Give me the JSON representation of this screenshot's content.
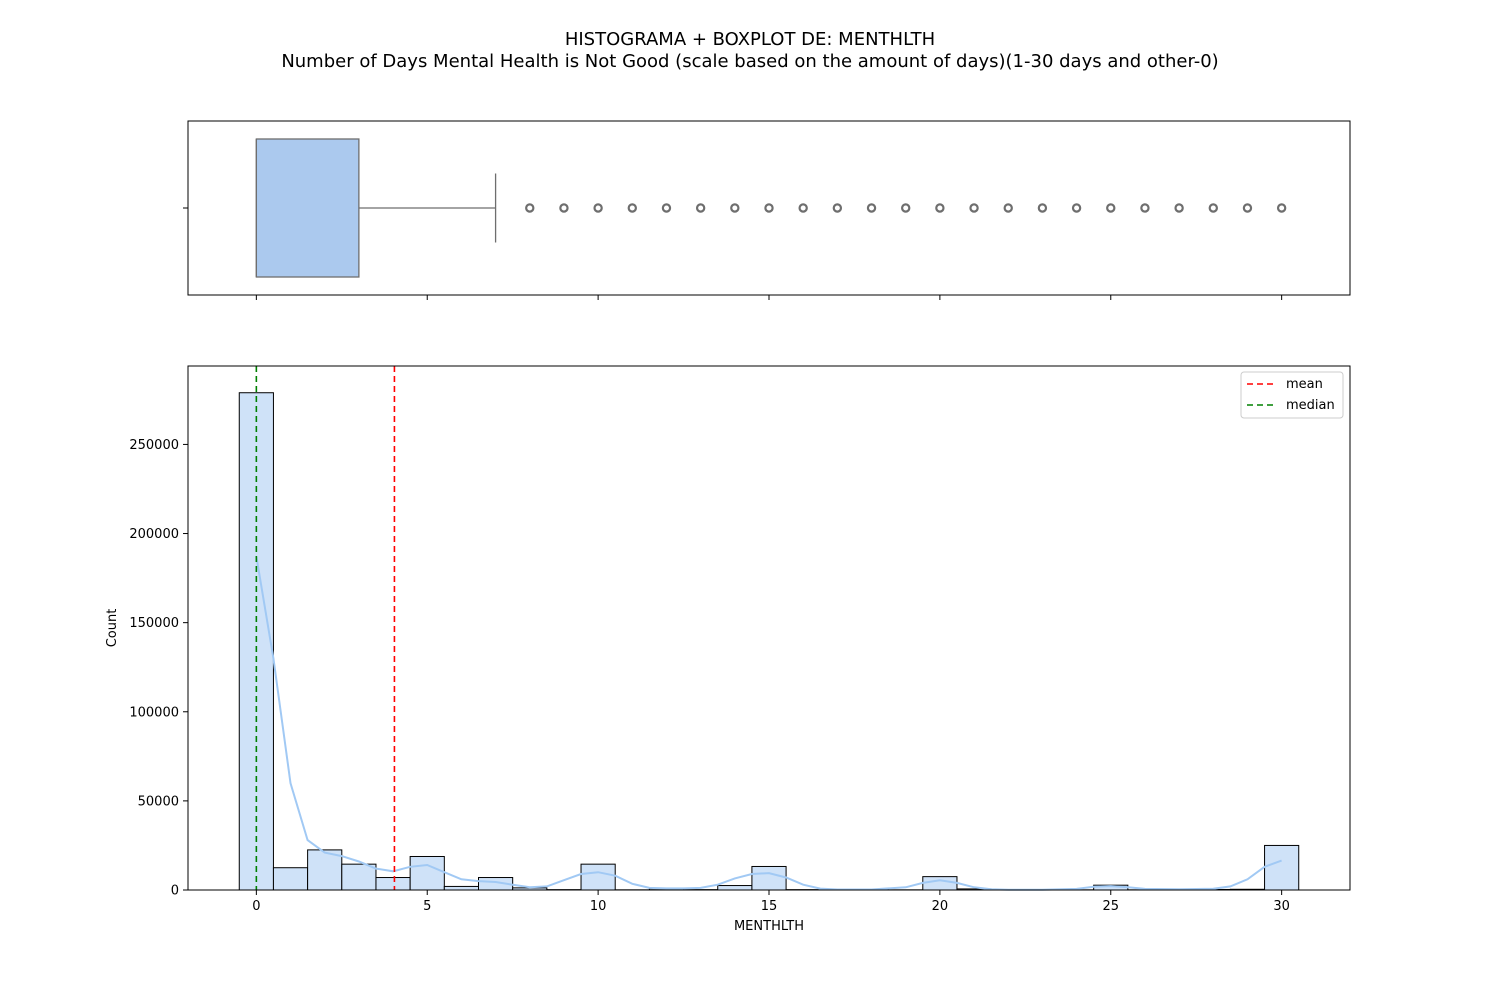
{
  "chart_data": {
    "type": "histogram+boxplot",
    "title": "HISTOGRAMA + BOXPLOT DE: MENTHLTH",
    "subtitle": "Number of Days Mental Health is Not Good (scale based on the amount of days)(1-30 days and other-0)",
    "xlabel": "MENTHLTH",
    "ylabel": "Count",
    "xlim": [
      -2,
      32
    ],
    "ylim": [
      0,
      294000
    ],
    "x_ticks": [
      0,
      5,
      10,
      15,
      20,
      25,
      30
    ],
    "y_ticks": [
      0,
      50000,
      100000,
      150000,
      200000,
      250000
    ],
    "grid": false,
    "legend_position": "top-right",
    "colors": {
      "bar_fill": "#cfe2f8",
      "bar_edge": "#000000",
      "kde": "#a1c9f4",
      "box_fill": "#abc9ee",
      "box_edge": "#6e6e6e",
      "mean": "#ff0000",
      "median": "#008000"
    },
    "reference_lines": [
      {
        "name": "mean",
        "x": 4.04,
        "color": "#ff0000"
      },
      {
        "name": "median",
        "x": 0,
        "color": "#008000"
      }
    ],
    "bins": [
      {
        "x0": -0.5,
        "x1": 0.5,
        "count": 279000
      },
      {
        "x0": 0.5,
        "x1": 1.5,
        "count": 12500
      },
      {
        "x0": 1.5,
        "x1": 2.5,
        "count": 22500
      },
      {
        "x0": 2.5,
        "x1": 3.5,
        "count": 14500
      },
      {
        "x0": 3.5,
        "x1": 4.5,
        "count": 7000
      },
      {
        "x0": 4.5,
        "x1": 5.5,
        "count": 18800
      },
      {
        "x0": 5.5,
        "x1": 6.5,
        "count": 2000
      },
      {
        "x0": 6.5,
        "x1": 7.5,
        "count": 7000
      },
      {
        "x0": 7.5,
        "x1": 8.5,
        "count": 1200
      },
      {
        "x0": 8.5,
        "x1": 9.5,
        "count": 200
      },
      {
        "x0": 9.5,
        "x1": 10.5,
        "count": 14500
      },
      {
        "x0": 10.5,
        "x1": 11.5,
        "count": 100
      },
      {
        "x0": 11.5,
        "x1": 12.5,
        "count": 700
      },
      {
        "x0": 12.5,
        "x1": 13.5,
        "count": 200
      },
      {
        "x0": 13.5,
        "x1": 14.5,
        "count": 2500
      },
      {
        "x0": 14.5,
        "x1": 15.5,
        "count": 13200
      },
      {
        "x0": 15.5,
        "x1": 16.5,
        "count": 200
      },
      {
        "x0": 16.5,
        "x1": 17.5,
        "count": 200
      },
      {
        "x0": 17.5,
        "x1": 18.5,
        "count": 200
      },
      {
        "x0": 18.5,
        "x1": 19.5,
        "count": 100
      },
      {
        "x0": 19.5,
        "x1": 20.5,
        "count": 7500
      },
      {
        "x0": 20.5,
        "x1": 21.5,
        "count": 600
      },
      {
        "x0": 21.5,
        "x1": 22.5,
        "count": 100
      },
      {
        "x0": 22.5,
        "x1": 23.5,
        "count": 100
      },
      {
        "x0": 23.5,
        "x1": 24.5,
        "count": 100
      },
      {
        "x0": 24.5,
        "x1": 25.5,
        "count": 2700
      },
      {
        "x0": 25.5,
        "x1": 26.5,
        "count": 100
      },
      {
        "x0": 26.5,
        "x1": 27.5,
        "count": 200
      },
      {
        "x0": 27.5,
        "x1": 28.5,
        "count": 300
      },
      {
        "x0": 28.5,
        "x1": 29.5,
        "count": 400
      },
      {
        "x0": 29.5,
        "x1": 30.5,
        "count": 25000
      }
    ],
    "kde": [
      [
        0,
        187000
      ],
      [
        0.5,
        130000
      ],
      [
        1,
        60000
      ],
      [
        1.5,
        28000
      ],
      [
        2,
        21000
      ],
      [
        2.5,
        19000
      ],
      [
        3,
        16000
      ],
      [
        3.5,
        12000
      ],
      [
        4,
        10500
      ],
      [
        4.5,
        13000
      ],
      [
        5,
        14000
      ],
      [
        5.5,
        10000
      ],
      [
        6,
        6000
      ],
      [
        6.5,
        5000
      ],
      [
        7,
        4500
      ],
      [
        7.5,
        3000
      ],
      [
        8,
        1500
      ],
      [
        8.5,
        2000
      ],
      [
        9,
        5500
      ],
      [
        9.5,
        9000
      ],
      [
        10,
        10000
      ],
      [
        10.5,
        8000
      ],
      [
        11,
        3500
      ],
      [
        11.5,
        1200
      ],
      [
        12,
        900
      ],
      [
        12.5,
        900
      ],
      [
        13,
        1200
      ],
      [
        13.5,
        3000
      ],
      [
        14,
        6500
      ],
      [
        14.5,
        9000
      ],
      [
        15,
        9500
      ],
      [
        15.5,
        7000
      ],
      [
        16,
        3000
      ],
      [
        16.5,
        800
      ],
      [
        17,
        300
      ],
      [
        18,
        300
      ],
      [
        19,
        1500
      ],
      [
        19.5,
        4000
      ],
      [
        20,
        5500
      ],
      [
        20.5,
        4000
      ],
      [
        21,
        1500
      ],
      [
        21.5,
        400
      ],
      [
        22,
        150
      ],
      [
        23,
        150
      ],
      [
        24,
        600
      ],
      [
        24.5,
        1800
      ],
      [
        25,
        2200
      ],
      [
        25.5,
        1500
      ],
      [
        26,
        600
      ],
      [
        27,
        400
      ],
      [
        28,
        700
      ],
      [
        28.5,
        2000
      ],
      [
        29,
        6000
      ],
      [
        29.5,
        13000
      ],
      [
        30,
        16500
      ]
    ],
    "boxplot": {
      "q1": 0,
      "median": 0,
      "q3": 3,
      "whisker_low": 0,
      "whisker_high": 7,
      "outliers": [
        8,
        9,
        10,
        11,
        12,
        13,
        14,
        15,
        16,
        17,
        18,
        19,
        20,
        21,
        22,
        23,
        24,
        25,
        26,
        27,
        28,
        29,
        30
      ]
    },
    "legend": [
      "mean",
      "median"
    ]
  }
}
